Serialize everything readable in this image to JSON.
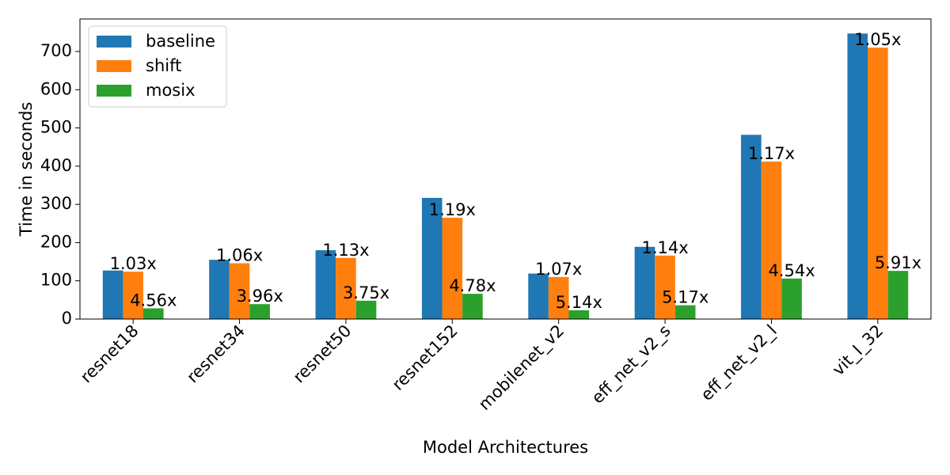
{
  "chart_data": {
    "type": "bar",
    "title": "",
    "xlabel": "Model Architectures",
    "ylabel": "Time in seconds",
    "ylim": [
      0,
      785
    ],
    "yticks": [
      0,
      100,
      200,
      300,
      400,
      500,
      600,
      700
    ],
    "categories": [
      "resnet18",
      "resnet34",
      "resnet50",
      "resnet152",
      "mobilenet_v2",
      "eff_net_v2_s",
      "eff_net_v2_l",
      "vit_l_32"
    ],
    "series": [
      {
        "name": "baseline",
        "color": "#1f77b4",
        "values": [
          127,
          155,
          180,
          317,
          119,
          189,
          482,
          747
        ]
      },
      {
        "name": "shift",
        "color": "#ff7f0e",
        "values": [
          124,
          146,
          160,
          265,
          110,
          166,
          412,
          710
        ]
      },
      {
        "name": "mosix",
        "color": "#2ca02c",
        "values": [
          28,
          39,
          48,
          66,
          23,
          36,
          106,
          126
        ]
      }
    ],
    "annotations": {
      "shift_speedup": [
        "1.03x",
        "1.06x",
        "1.13x",
        "1.19x",
        "1.07x",
        "1.14x",
        "1.17x",
        "1.05x"
      ],
      "mosix_speedup": [
        "4.56x",
        "3.96x",
        "3.75x",
        "4.78x",
        "5.14x",
        "5.17x",
        "4.54x",
        "5.91x"
      ]
    },
    "legend_position": "top-left",
    "grid": false
  }
}
